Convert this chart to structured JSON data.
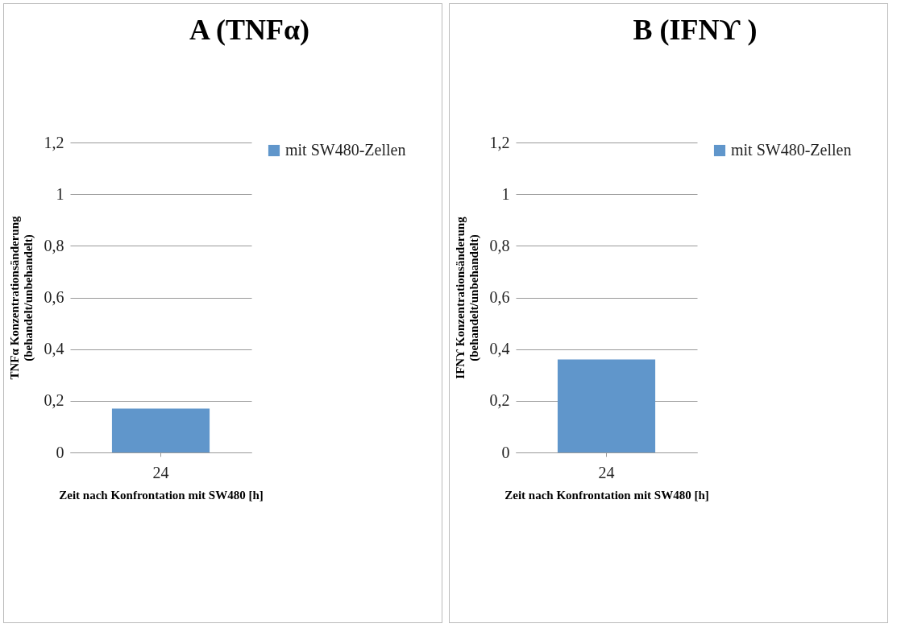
{
  "chart_data": [
    {
      "type": "bar",
      "title": "A (TNFα)",
      "ylabel": "TNFα Konzentrationsänderung\n(behandelt/unbehandelt)",
      "xlabel": "Zeit nach Konfrontation mit SW480 [h]",
      "categories": [
        "24"
      ],
      "series": [
        {
          "name": "mit SW480-Zellen",
          "color": "#6096cb",
          "values": [
            0.17
          ]
        }
      ],
      "ylim": [
        0,
        1.2
      ],
      "yticks": [
        {
          "value": 0,
          "label": "0"
        },
        {
          "value": 0.2,
          "label": "0,2"
        },
        {
          "value": 0.4,
          "label": "0,4"
        },
        {
          "value": 0.6,
          "label": "0,6"
        },
        {
          "value": 0.8,
          "label": "0,8"
        },
        {
          "value": 1,
          "label": "1"
        },
        {
          "value": 1.2,
          "label": "1,2"
        }
      ],
      "grid": "y",
      "legend": "right"
    },
    {
      "type": "bar",
      "title": "B (IFNϒ )",
      "ylabel": "IFNϒ  Konzentrationsänderung\n(behandelt/unbehandelt)",
      "xlabel": "Zeit nach Konfrontation mit SW480 [h]",
      "categories": [
        "24"
      ],
      "series": [
        {
          "name": "mit SW480-Zellen",
          "color": "#6096cb",
          "values": [
            0.36
          ]
        }
      ],
      "ylim": [
        0,
        1.2
      ],
      "yticks": [
        {
          "value": 0,
          "label": "0"
        },
        {
          "value": 0.2,
          "label": "0,2"
        },
        {
          "value": 0.4,
          "label": "0,4"
        },
        {
          "value": 0.6,
          "label": "0,6"
        },
        {
          "value": 0.8,
          "label": "0,8"
        },
        {
          "value": 1,
          "label": "1"
        },
        {
          "value": 1.2,
          "label": "1,2"
        }
      ],
      "grid": "y",
      "legend": "right"
    }
  ]
}
